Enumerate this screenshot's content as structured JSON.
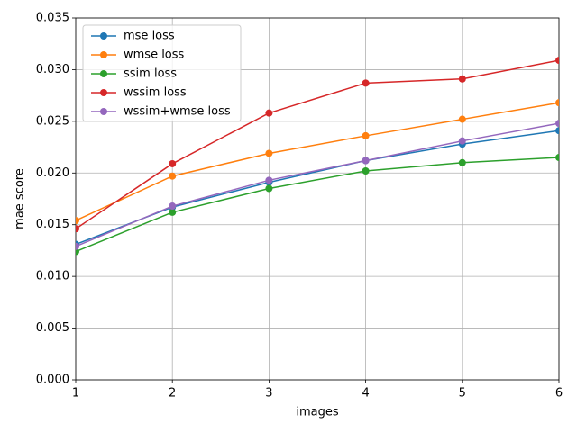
{
  "chart_data": {
    "type": "line",
    "xlabel": "images",
    "ylabel": "mae score",
    "x": [
      1,
      2,
      3,
      4,
      5,
      6
    ],
    "series": [
      {
        "name": "mse loss",
        "color": "#1f77b4",
        "values": [
          0.0131,
          0.0167,
          0.0191,
          0.0212,
          0.0228,
          0.0241
        ]
      },
      {
        "name": "wmse loss",
        "color": "#ff7f0e",
        "values": [
          0.0154,
          0.0197,
          0.0219,
          0.0236,
          0.0252,
          0.0268
        ]
      },
      {
        "name": "ssim loss",
        "color": "#2ca02c",
        "values": [
          0.0124,
          0.0162,
          0.0185,
          0.0202,
          0.021,
          0.0215
        ]
      },
      {
        "name": "wssim loss",
        "color": "#d62728",
        "values": [
          0.0146,
          0.0209,
          0.0258,
          0.0287,
          0.0291,
          0.0309
        ]
      },
      {
        "name": "wssim+wmse loss",
        "color": "#9467bd",
        "values": [
          0.0129,
          0.0168,
          0.0193,
          0.0212,
          0.0231,
          0.0248
        ]
      }
    ],
    "xlim": [
      1,
      6
    ],
    "xticks": [
      1,
      2,
      3,
      4,
      5,
      6
    ],
    "ylim": [
      0,
      0.035
    ],
    "yticks": [
      {
        "value": 0,
        "label": "0.000"
      },
      0.005,
      {
        "value": 0.01,
        "label": "0.010"
      },
      0.015,
      {
        "value": 0.02,
        "label": "0.020"
      },
      0.025,
      {
        "value": 0.03,
        "label": "0.030"
      },
      0.035
    ],
    "grid": true,
    "legend": "upper left"
  }
}
